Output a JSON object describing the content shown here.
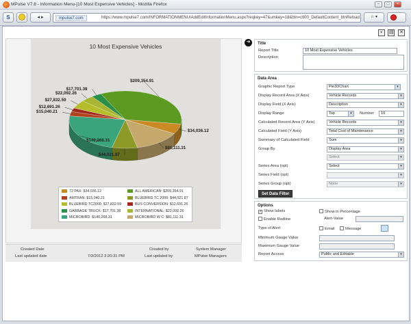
{
  "window": {
    "title": "MPulse V7.8 - Information Menu-[10 Most Expensive Vehicles] - Mozilla Firefox"
  },
  "browser": {
    "domain": "mpulse7.com",
    "url": "https://www.mpulse7.com/INFORMATIONMENU/AddEditInformationMenu.aspx?reqkey=47&umkey=18&btn=ctl00_DefaultContent_btnReload"
  },
  "chart_data": {
    "type": "pie",
    "title": "10 Most Expensive Vehicles",
    "slices": [
      {
        "label": "72 PAX",
        "value": 34036.12,
        "text": "$34,036.12",
        "color": "#c98a23"
      },
      {
        "label": "AMTRAN",
        "value": 15040.21,
        "text": "$15,040.21",
        "color": "#b2421c"
      },
      {
        "label": "BLUEBIRD TC2000",
        "value": 27832.59,
        "text": "$27,832.59",
        "color": "#b5bd2a"
      },
      {
        "label": "GARBAGE TRUCK",
        "value": 17701.38,
        "text": "$17,701.38",
        "color": "#2a8f48"
      },
      {
        "label": "MICROBIRD",
        "value": 140268.31,
        "text": "$140,268.31",
        "color": "#3aa57c"
      },
      {
        "label": "ALL AMERICAN",
        "value": 209354.91,
        "text": "$209,354.91",
        "color": "#5c9a22"
      },
      {
        "label": "BLUEBIRD TC 2000",
        "value": 44021.87,
        "text": "$44,021.87",
        "color": "#8e9a26"
      },
      {
        "label": "BUS CONVERSION",
        "value": 12691.26,
        "text": "$12,691.26",
        "color": "#a0281c"
      },
      {
        "label": "INTERNATIONAL",
        "value": 22092.26,
        "text": "$22,092.26",
        "color": "#a8b634"
      },
      {
        "label": "MICROBIRD  W C",
        "value": 81111.31,
        "text": "$81,111.31",
        "color": "#c4a86c"
      }
    ],
    "legend_text": [
      "72 PAX: $34,036.12",
      "AMTRAN: $15,040.21",
      "BLUEBIRD TC2000: $27,832.59",
      "GARBAGE TRUCK: $17,701.38",
      "MICROBIRD: $140,268.31",
      "ALL AMERICAN: $209,354.91",
      "BLUEBIRD TC 2000: $44,021.87",
      "BUS CONVERSION: $12,691.26",
      "INTERNATIONAL: $22,092.26",
      "MICROBIRD  W C: $81,111.31"
    ]
  },
  "footer": {
    "created_date_label": "Created Date",
    "last_updated_date_label": "Last updated date",
    "last_updated_date": "7/2/2012 2:20:31 PM",
    "created_by_label": "Created by",
    "created_by": "System Manager",
    "last_updated_by_label": "Last updated by",
    "last_updated_by": "MPulse Managers"
  },
  "title_section": {
    "heading": "Title",
    "report_title_label": "Report Title",
    "report_title": "10 Most Expensive Vehicles",
    "description_label": "Description",
    "description": ""
  },
  "data_area": {
    "heading": "Data Area",
    "graphic_report_type_label": "Graphic Report Type",
    "graphic_report_type": "Pie3DChart",
    "display_record_area_label": "Display Record Area (X Axis)",
    "display_record_area": "Vehicle Records",
    "display_field_label": "Display Field (X Axis)",
    "display_field": "Description",
    "display_range_label": "Display Range",
    "display_range": "Top",
    "number_label": "Number",
    "number": "10",
    "calc_record_area_label": "Calculated Record Area (Y Axis)",
    "calc_record_area": "Vehicle Records",
    "calc_field_label": "Calculated Field (Y Axis)",
    "calc_field": "Total Cost of Maintenance",
    "summary_label": "Summary of Calculated Field",
    "summary": "Sum",
    "group_by_label": "Group By",
    "group_by": "Display Area",
    "group_by_select": "Select",
    "series_area_label": "Series Area (opt)",
    "series_area": "Select",
    "series_field_label": "Series Field (opt)",
    "series_field": "",
    "series_group_label": "Series Group (opt)",
    "series_group": "None",
    "set_filter_button": "Set Data Filter"
  },
  "options": {
    "heading": "Options",
    "show_labels": "Show labels",
    "show_percentage": "Show in Percentage",
    "enable_redline": "Enable Redline",
    "alert_value_label": "Alert-Value",
    "type_of_alert_label": "Type of Alert",
    "email_label": "Email",
    "message_label": "Message",
    "min_gauge_label": "Minimum Gauge Value",
    "max_gauge_label": "Maximum Gauge Value",
    "report_access_label": "Report Access",
    "report_access": "Public and Editable"
  }
}
